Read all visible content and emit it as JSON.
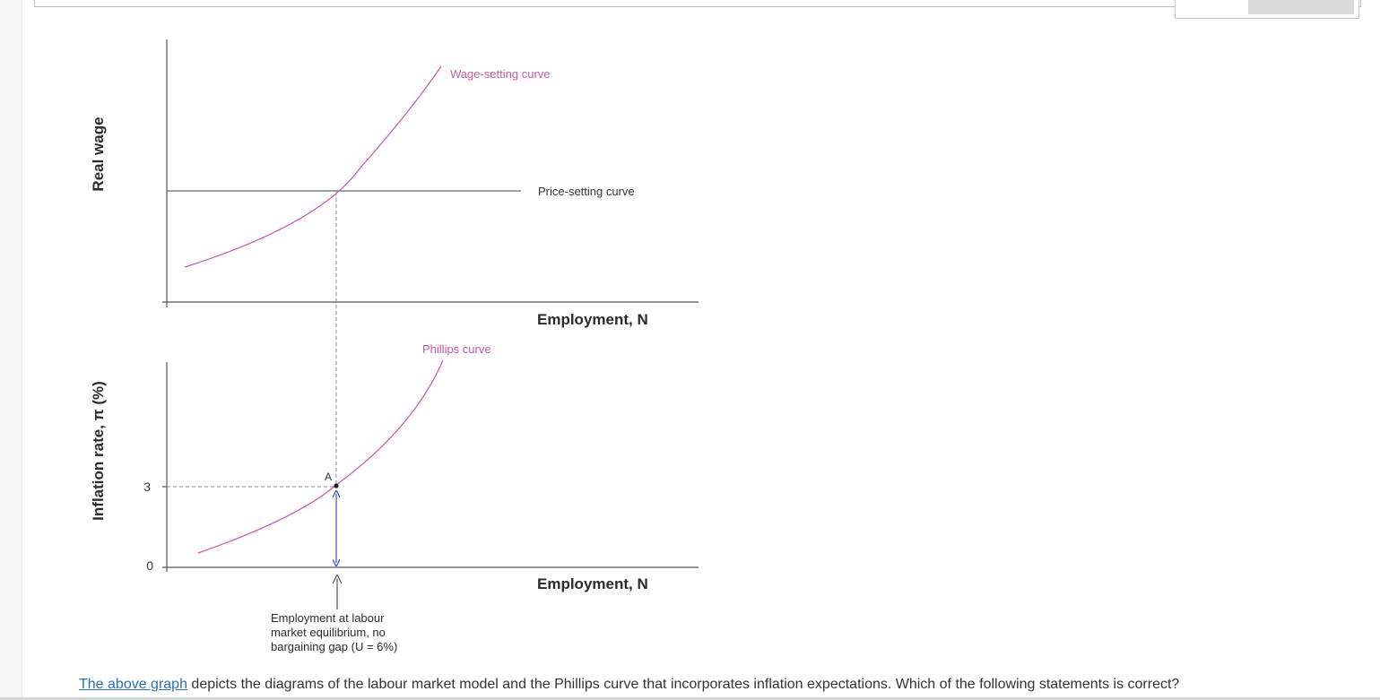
{
  "colors": {
    "curve": "#c75aa4",
    "axis": "#555555",
    "arrow": "#3f51c9",
    "link": "#2a6ebb"
  },
  "question": {
    "link_text": "The above graph",
    "rest_text": " depicts the diagrams of the labour market model and the Phillips curve that incorporates inflation expectations. Which of the following statements is correct?"
  },
  "chart_data": [
    {
      "type": "line",
      "title": "",
      "ylabel": "Real wage",
      "xlabel": "Employment, N",
      "series": [
        {
          "name": "Wage-setting curve",
          "shape": "upward-sloping convex"
        },
        {
          "name": "Price-setting curve",
          "shape": "horizontal"
        }
      ],
      "annotations": []
    },
    {
      "type": "line",
      "title": "",
      "ylabel": "Inflation rate, π (%)",
      "xlabel": "Employment, N",
      "yticks": [
        "0",
        "3"
      ],
      "series": [
        {
          "name": "Phillips curve",
          "shape": "upward-sloping convex"
        }
      ],
      "points": [
        {
          "label": "A",
          "y": 3
        }
      ],
      "annotations": [
        "Employment at labour",
        "market equilibrium, no",
        "bargaining gap (U = 6%)"
      ]
    }
  ]
}
